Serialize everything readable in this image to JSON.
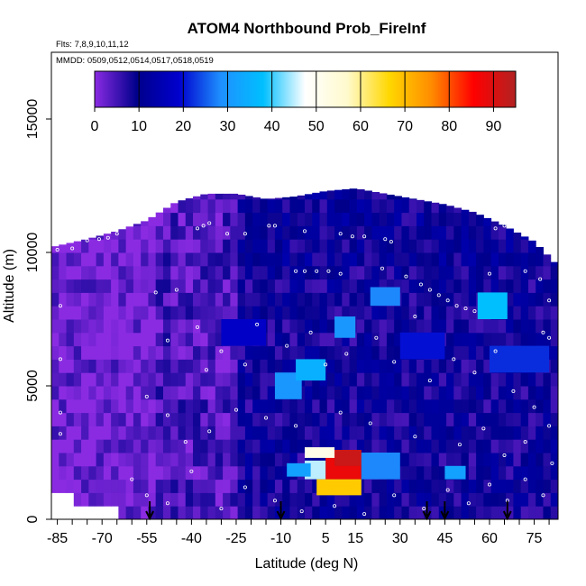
{
  "chart_data": {
    "type": "heatmap",
    "title": "ATOM4 Northbound Prob_FireInf",
    "annotations": {
      "flights": "Flts: 7,8,9,10,11,12",
      "dates": "MMDD: 0509,0512,0514,0517,0518,0519"
    },
    "xlabel": "Latitude (deg N)",
    "ylabel": "Altitude (m)",
    "xlim": [
      -87,
      83
    ],
    "ylim": [
      0,
      17500
    ],
    "x_ticks": [
      -85,
      -70,
      -55,
      -40,
      -25,
      -10,
      5,
      15,
      30,
      45,
      60,
      75
    ],
    "x_tick_labels": [
      "-85",
      "-70",
      "-55",
      "-40",
      "-25",
      "-10",
      "5",
      "15",
      "30",
      "45",
      "60",
      "75"
    ],
    "x_minor_step": 5,
    "y_ticks": [
      0,
      5000,
      10000,
      15000
    ],
    "y_tick_labels": [
      "0",
      "5000",
      "10000",
      "15000"
    ],
    "colorbar": {
      "min": 0,
      "max": 95,
      "ticks": [
        0,
        10,
        20,
        30,
        40,
        50,
        60,
        70,
        80,
        90
      ],
      "tick_labels": [
        "0",
        "10",
        "20",
        "30",
        "40",
        "50",
        "60",
        "70",
        "80",
        "90"
      ],
      "colors": [
        "#8a2be2",
        "#00008b",
        "#0000cd",
        "#1e90ff",
        "#00bfff",
        "#ffffff",
        "#fffacd",
        "#ffd700",
        "#ff8c00",
        "#ff0000",
        "#b22222"
      ]
    },
    "arrows_latitude": [
      -54,
      -10,
      39,
      45,
      66
    ],
    "profile": {
      "lat": [
        -87,
        -75,
        -65,
        -55,
        -45,
        -35,
        -25,
        -15,
        -5,
        5,
        15,
        25,
        35,
        45,
        55,
        65,
        75,
        83
      ],
      "top_alt": [
        10200,
        10500,
        10800,
        11200,
        11900,
        12200,
        12200,
        12000,
        12100,
        12300,
        12400,
        12200,
        12000,
        11800,
        11500,
        11000,
        10400,
        9500
      ],
      "bottom_alt": [
        1200,
        900,
        500,
        0,
        0,
        0,
        0,
        0,
        0,
        0,
        0,
        0,
        0,
        0,
        0,
        0,
        0,
        0
      ]
    },
    "cells": [
      {
        "lat": [
          5,
          17
        ],
        "alt": [
          1500,
          2600
        ],
        "value": 88
      },
      {
        "lat": [
          8,
          17
        ],
        "alt": [
          2000,
          2600
        ],
        "value": 92
      },
      {
        "lat": [
          -2,
          8
        ],
        "alt": [
          2300,
          2700
        ],
        "value": 52
      },
      {
        "lat": [
          -2,
          5
        ],
        "alt": [
          1500,
          2200
        ],
        "value": 45
      },
      {
        "lat": [
          2,
          17
        ],
        "alt": [
          900,
          1500
        ],
        "value": 68
      },
      {
        "lat": [
          -8,
          0
        ],
        "alt": [
          1600,
          2100
        ],
        "value": 32
      },
      {
        "lat": [
          17,
          30
        ],
        "alt": [
          1500,
          2500
        ],
        "value": 28
      },
      {
        "lat": [
          -12,
          -3
        ],
        "alt": [
          4500,
          5500
        ],
        "value": 30
      },
      {
        "lat": [
          -5,
          5
        ],
        "alt": [
          5200,
          6000
        ],
        "value": 35
      },
      {
        "lat": [
          8,
          15
        ],
        "alt": [
          6800,
          7600
        ],
        "value": 30
      },
      {
        "lat": [
          20,
          30
        ],
        "alt": [
          8000,
          8700
        ],
        "value": 28
      },
      {
        "lat": [
          56,
          66
        ],
        "alt": [
          7500,
          8500
        ],
        "value": 38
      },
      {
        "lat": [
          45,
          52
        ],
        "alt": [
          1500,
          2000
        ],
        "value": 32
      },
      {
        "lat": [
          -30,
          -15
        ],
        "alt": [
          6500,
          7500
        ],
        "value": 18
      },
      {
        "lat": [
          30,
          45
        ],
        "alt": [
          6000,
          7000
        ],
        "value": 20
      },
      {
        "lat": [
          60,
          80
        ],
        "alt": [
          5500,
          6500
        ],
        "value": 22
      }
    ],
    "observation_points": [
      {
        "x": -85,
        "y": 10100
      },
      {
        "x": -80,
        "y": 10150
      },
      {
        "x": -75,
        "y": 10450
      },
      {
        "x": -71,
        "y": 10500
      },
      {
        "x": -68,
        "y": 10550
      },
      {
        "x": -65,
        "y": 10700
      },
      {
        "x": -62,
        "y": 11100
      },
      {
        "x": -38,
        "y": 10900
      },
      {
        "x": -36,
        "y": 11000
      },
      {
        "x": -34,
        "y": 11100
      },
      {
        "x": -28,
        "y": 10700
      },
      {
        "x": -22,
        "y": 10700
      },
      {
        "x": -14,
        "y": 11000
      },
      {
        "x": -12,
        "y": 11000
      },
      {
        "x": -2,
        "y": 10800
      },
      {
        "x": 10,
        "y": 10700
      },
      {
        "x": 14,
        "y": 10600
      },
      {
        "x": 18,
        "y": 10600
      },
      {
        "x": 25,
        "y": 10500
      },
      {
        "x": 27,
        "y": 10400
      },
      {
        "x": 62,
        "y": 10900
      },
      {
        "x": 65,
        "y": 11000
      },
      {
        "x": 68,
        "y": 11100
      },
      {
        "x": 70,
        "y": 11100
      },
      {
        "x": 37,
        "y": 8800
      },
      {
        "x": 40,
        "y": 8600
      },
      {
        "x": 43,
        "y": 8400
      },
      {
        "x": 46,
        "y": 8200
      },
      {
        "x": 49,
        "y": 8000
      },
      {
        "x": 52,
        "y": 7900
      },
      {
        "x": 55,
        "y": 7800
      },
      {
        "x": -5,
        "y": 9300
      },
      {
        "x": -2,
        "y": 9300
      },
      {
        "x": 2,
        "y": 9300
      },
      {
        "x": 6,
        "y": 9300
      },
      {
        "x": 10,
        "y": 9200
      },
      {
        "x": 24,
        "y": 9400
      },
      {
        "x": 32,
        "y": 9100
      },
      {
        "x": 60,
        "y": 9200
      },
      {
        "x": 72,
        "y": 9300
      },
      {
        "x": -84,
        "y": 8000
      },
      {
        "x": -84,
        "y": 6000
      },
      {
        "x": -84,
        "y": 4000
      },
      {
        "x": -84,
        "y": 3200
      },
      {
        "x": -52,
        "y": 8500
      },
      {
        "x": -45,
        "y": 8600
      },
      {
        "x": -48,
        "y": 6700
      },
      {
        "x": -38,
        "y": 7200
      },
      {
        "x": -35,
        "y": 5600
      },
      {
        "x": -30,
        "y": 6300
      },
      {
        "x": -22,
        "y": 5800
      },
      {
        "x": -18,
        "y": 7300
      },
      {
        "x": -8,
        "y": 6500
      },
      {
        "x": 0,
        "y": 7000
      },
      {
        "x": 5,
        "y": 5800
      },
      {
        "x": 12,
        "y": 6200
      },
      {
        "x": 22,
        "y": 6800
      },
      {
        "x": 28,
        "y": 5900
      },
      {
        "x": 35,
        "y": 7600
      },
      {
        "x": 40,
        "y": 5200
      },
      {
        "x": 48,
        "y": 6000
      },
      {
        "x": 55,
        "y": 5500
      },
      {
        "x": 62,
        "y": 6300
      },
      {
        "x": 68,
        "y": 4800
      },
      {
        "x": 75,
        "y": 4200
      },
      {
        "x": 78,
        "y": 7000
      },
      {
        "x": -55,
        "y": 4600
      },
      {
        "x": -48,
        "y": 3900
      },
      {
        "x": -42,
        "y": 2900
      },
      {
        "x": -34,
        "y": 3300
      },
      {
        "x": -25,
        "y": 4100
      },
      {
        "x": -15,
        "y": 3800
      },
      {
        "x": -5,
        "y": 3500
      },
      {
        "x": 10,
        "y": 4000
      },
      {
        "x": 20,
        "y": 3600
      },
      {
        "x": 35,
        "y": 3100
      },
      {
        "x": 50,
        "y": 2800
      },
      {
        "x": 58,
        "y": 3400
      },
      {
        "x": 65,
        "y": 2400
      },
      {
        "x": 72,
        "y": 2900
      },
      {
        "x": 80,
        "y": 3500
      },
      {
        "x": -60,
        "y": 1500
      },
      {
        "x": -55,
        "y": 900
      },
      {
        "x": -48,
        "y": 600
      },
      {
        "x": -40,
        "y": 1800
      },
      {
        "x": -30,
        "y": 400
      },
      {
        "x": -22,
        "y": 1200
      },
      {
        "x": -12,
        "y": 700
      },
      {
        "x": -3,
        "y": 300
      },
      {
        "x": 8,
        "y": 500
      },
      {
        "x": 18,
        "y": 200
      },
      {
        "x": 28,
        "y": 900
      },
      {
        "x": 38,
        "y": 400
      },
      {
        "x": 46,
        "y": 1100
      },
      {
        "x": 53,
        "y": 600
      },
      {
        "x": 60,
        "y": 1300
      },
      {
        "x": 66,
        "y": 700
      },
      {
        "x": 72,
        "y": 1500
      },
      {
        "x": 78,
        "y": 900
      },
      {
        "x": 81,
        "y": 2100
      },
      {
        "x": 80,
        "y": 6800
      },
      {
        "x": 80,
        "y": 8200
      },
      {
        "x": 77,
        "y": 9000
      }
    ]
  }
}
